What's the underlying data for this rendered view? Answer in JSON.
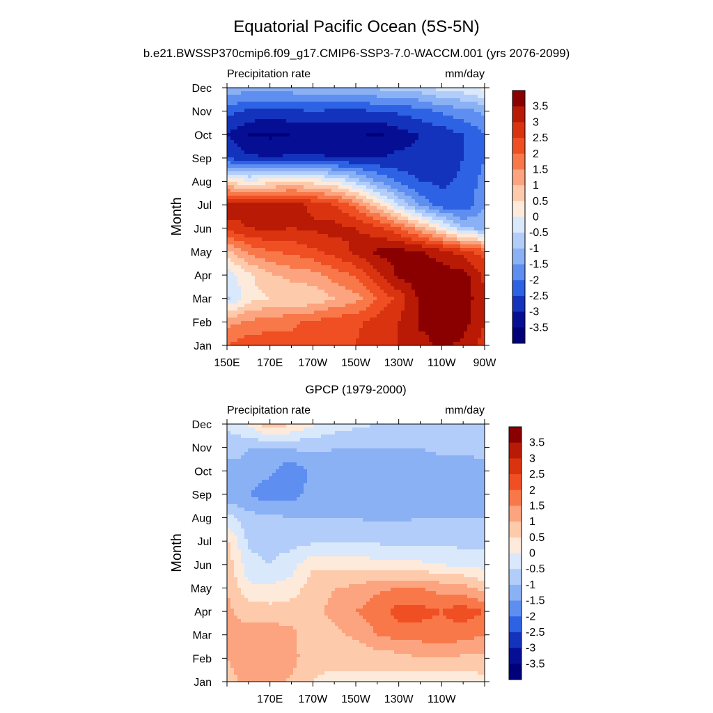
{
  "figure": {
    "title": "Equatorial Pacific Ocean (5S-5N)",
    "subtitle": "b.e21.BWSSP370cmip6.f09_g17.CMIP6-SSP3-7.0-WACCM.001 (yrs 2076-2099)"
  },
  "chart_data": [
    {
      "type": "heatmap",
      "title": "",
      "left_label": "Precipitation rate",
      "right_label": "mm/day",
      "ylabel": "Month",
      "xlabel": "",
      "x_tick_labels": [
        "150E",
        "170E",
        "170W",
        "150W",
        "130W",
        "110W",
        "90W"
      ],
      "x_tick_lon": [
        150,
        170,
        190,
        210,
        230,
        250,
        270
      ],
      "xlim": [
        150,
        270
      ],
      "y_tick_labels": [
        "Jan",
        "Feb",
        "Mar",
        "Apr",
        "May",
        "Jun",
        "Jul",
        "Aug",
        "Sep",
        "Oct",
        "Nov",
        "Dec"
      ],
      "colorbar": {
        "labels": [
          "3.5",
          "3",
          "2.5",
          "2",
          "1.5",
          "1",
          "0.5",
          "0",
          "-0.5",
          "-1",
          "-1.5",
          "-2",
          "-2.5",
          "-3",
          "-3.5"
        ],
        "colors": [
          "#8a0000",
          "#b91a05",
          "#d93310",
          "#ef4f22",
          "#f8784a",
          "#fca47f",
          "#fdcbab",
          "#fdeadb",
          "#d9e8fa",
          "#b2cdf9",
          "#8bb1f5",
          "#5e8ef0",
          "#2d62e4",
          "#1433bd",
          "#060f94",
          "#00007a"
        ]
      },
      "lon": [
        150,
        160,
        170,
        180,
        190,
        200,
        210,
        220,
        230,
        240,
        250,
        260,
        270
      ],
      "z": [
        [
          2.0,
          2.3,
          2.3,
          2.2,
          2.4,
          2.5,
          2.5,
          2.8,
          3.0,
          3.3,
          3.6,
          3.4,
          2.8
        ],
        [
          1.3,
          1.6,
          1.8,
          1.9,
          2.1,
          2.3,
          2.4,
          2.7,
          3.0,
          3.6,
          3.8,
          3.7,
          3.0
        ],
        [
          -0.6,
          0.3,
          0.5,
          0.5,
          0.6,
          1.0,
          1.3,
          2.0,
          2.7,
          3.6,
          4.0,
          3.9,
          3.0
        ],
        [
          -0.3,
          0.4,
          0.9,
          1.2,
          1.3,
          1.7,
          2.1,
          2.9,
          3.6,
          3.8,
          3.8,
          3.7,
          2.9
        ],
        [
          0.8,
          1.6,
          2.0,
          2.1,
          2.4,
          2.7,
          3.1,
          3.6,
          3.7,
          3.6,
          3.2,
          2.8,
          2.2
        ],
        [
          2.7,
          3.0,
          3.1,
          3.0,
          3.1,
          3.2,
          3.0,
          2.7,
          2.1,
          1.2,
          0.2,
          -0.9,
          -1.2
        ],
        [
          3.4,
          3.2,
          3.1,
          3.2,
          2.9,
          2.5,
          1.8,
          0.7,
          -0.5,
          -1.6,
          -2.3,
          -2.4,
          -1.5
        ],
        [
          0.4,
          0.1,
          0.3,
          0.5,
          0.3,
          0.0,
          -0.7,
          -1.5,
          -2.1,
          -2.5,
          -2.6,
          -2.4,
          -1.8
        ],
        [
          -2.5,
          -2.9,
          -3.0,
          -2.9,
          -2.9,
          -3.0,
          -3.0,
          -3.0,
          -2.9,
          -2.9,
          -2.8,
          -2.5,
          -2.0
        ],
        [
          -3.0,
          -3.5,
          -3.6,
          -3.5,
          -3.5,
          -3.4,
          -3.4,
          -3.6,
          -3.2,
          -3.0,
          -2.8,
          -2.5,
          -2.0
        ],
        [
          -2.3,
          -2.6,
          -2.7,
          -2.6,
          -2.5,
          -2.6,
          -2.6,
          -2.5,
          -2.4,
          -2.2,
          -1.9,
          -1.7,
          -1.4
        ],
        [
          -1.0,
          -1.3,
          -1.2,
          -1.2,
          -1.0,
          -1.0,
          -1.0,
          -0.9,
          -0.8,
          -0.7,
          -0.3,
          -0.2,
          0.2
        ]
      ]
    },
    {
      "type": "heatmap",
      "title": "GPCP (1979-2000)",
      "left_label": "Precipitation rate",
      "right_label": "mm/day",
      "ylabel": "Month",
      "xlabel": "",
      "x_tick_labels": [
        "170E",
        "170W",
        "150W",
        "130W",
        "110W"
      ],
      "x_tick_lon": [
        170,
        190,
        210,
        230,
        250
      ],
      "xlim": [
        150,
        270
      ],
      "y_tick_labels": [
        "Jan",
        "Feb",
        "Mar",
        "Apr",
        "May",
        "Jun",
        "Jul",
        "Aug",
        "Sep",
        "Oct",
        "Nov",
        "Dec"
      ],
      "colorbar": {
        "labels": [
          "3.5",
          "3",
          "2.5",
          "2",
          "1.5",
          "1",
          "0.5",
          "0",
          "-0.5",
          "-1",
          "-1.5",
          "-2",
          "-2.5",
          "-3",
          "-3.5"
        ],
        "colors": [
          "#8a0000",
          "#b91a05",
          "#d93310",
          "#ef4f22",
          "#f8784a",
          "#fca47f",
          "#fdcbab",
          "#fdeadb",
          "#d9e8fa",
          "#b2cdf9",
          "#8bb1f5",
          "#5e8ef0",
          "#2d62e4",
          "#1433bd",
          "#060f94",
          "#00007a"
        ]
      },
      "lon": [
        150,
        160,
        170,
        180,
        190,
        200,
        210,
        220,
        230,
        240,
        250,
        260,
        270
      ],
      "z": [
        [
          0.8,
          1.2,
          1.3,
          0.9,
          0.5,
          0.4,
          0.4,
          0.3,
          0.2,
          0.1,
          0.2,
          0.2,
          0.3
        ],
        [
          1.0,
          1.3,
          1.4,
          1.2,
          0.6,
          0.6,
          0.6,
          0.7,
          0.8,
          1.0,
          1.0,
          0.9,
          0.9
        ],
        [
          1.0,
          1.2,
          1.3,
          1.1,
          0.7,
          0.9,
          1.1,
          1.5,
          1.7,
          1.7,
          1.8,
          1.7,
          1.5
        ],
        [
          1.1,
          0.8,
          0.7,
          0.8,
          0.9,
          1.1,
          1.5,
          1.8,
          2.2,
          2.2,
          2.0,
          2.3,
          2.0
        ],
        [
          1.0,
          0.1,
          0.1,
          0.2,
          0.8,
          1.0,
          1.1,
          1.4,
          1.5,
          1.5,
          1.3,
          1.2,
          0.8
        ],
        [
          0.8,
          -0.3,
          -0.5,
          -0.2,
          0.4,
          0.4,
          0.3,
          0.2,
          0.1,
          0.1,
          0.0,
          -0.1,
          -0.2
        ],
        [
          0.6,
          -0.6,
          -0.7,
          -0.7,
          -0.6,
          -0.6,
          -0.6,
          -0.6,
          -0.6,
          -0.6,
          -0.6,
          -0.7,
          -0.7
        ],
        [
          -0.3,
          -0.8,
          -0.9,
          -1.0,
          -1.0,
          -1.0,
          -1.0,
          -1.1,
          -1.1,
          -1.0,
          -1.0,
          -1.0,
          -1.0
        ],
        [
          -1.4,
          -1.5,
          -1.8,
          -1.7,
          -1.3,
          -1.1,
          -1.1,
          -1.4,
          -1.4,
          -1.3,
          -1.2,
          -1.1,
          -1.0
        ],
        [
          -1.3,
          -1.2,
          -1.4,
          -1.9,
          -1.4,
          -1.1,
          -1.1,
          -1.3,
          -1.3,
          -1.2,
          -1.2,
          -1.2,
          -1.1
        ],
        [
          -0.6,
          -1.0,
          -1.0,
          -0.9,
          -0.9,
          -1.0,
          -1.0,
          -1.0,
          -1.0,
          -1.0,
          -0.9,
          -0.9,
          -0.9
        ],
        [
          -0.5,
          0.1,
          0.9,
          0.5,
          0.1,
          -0.2,
          -0.4,
          -0.5,
          -0.6,
          -0.7,
          -0.7,
          -0.7,
          -0.7
        ]
      ]
    }
  ]
}
